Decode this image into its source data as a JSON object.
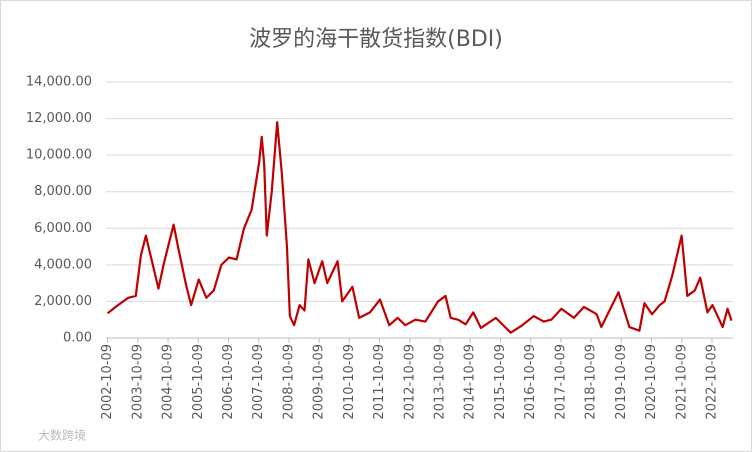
{
  "chart_data": {
    "type": "line",
    "title": "波罗的海干散货指数(BDI)",
    "x": [
      "2002-10-09",
      "2003-01-15",
      "2003-06-15",
      "2003-09-15",
      "2003-11-15",
      "2004-01-15",
      "2004-02-15",
      "2004-06-15",
      "2004-08-15",
      "2004-12-15",
      "2005-02-15",
      "2005-05-15",
      "2005-07-15",
      "2005-10-15",
      "2006-01-15",
      "2006-04-15",
      "2006-07-15",
      "2006-10-15",
      "2007-01-15",
      "2007-04-15",
      "2007-07-15",
      "2007-10-15",
      "2007-11-15",
      "2007-12-15",
      "2008-01-15",
      "2008-03-15",
      "2008-05-20",
      "2008-07-15",
      "2008-09-15",
      "2008-10-20",
      "2008-12-10",
      "2009-02-15",
      "2009-04-15",
      "2009-06-01",
      "2009-08-15",
      "2009-11-15",
      "2010-01-15",
      "2010-05-20",
      "2010-07-15",
      "2010-11-15",
      "2011-02-05",
      "2011-06-15",
      "2011-10-15",
      "2012-02-03",
      "2012-05-15",
      "2012-08-15",
      "2012-12-15",
      "2013-04-15",
      "2013-09-15",
      "2013-12-15",
      "2014-02-15",
      "2014-05-15",
      "2014-08-15",
      "2014-11-15",
      "2015-02-15",
      "2015-08-15",
      "2016-02-10",
      "2016-06-15",
      "2016-11-15",
      "2017-03-15",
      "2017-06-15",
      "2017-10-15",
      "2018-03-15",
      "2018-07-15",
      "2018-12-15",
      "2019-02-10",
      "2019-09-05",
      "2020-01-15",
      "2020-05-15",
      "2020-07-15",
      "2020-10-15",
      "2021-01-15",
      "2021-03-15",
      "2021-06-15",
      "2021-10-07",
      "2021-12-15",
      "2022-03-15",
      "2022-05-20",
      "2022-08-15",
      "2022-10-15",
      "2023-02-15",
      "2023-04-15",
      "2023-06-01"
    ],
    "series": [
      {
        "name": "BDI",
        "color": "#c00000",
        "values": [
          1350,
          1700,
          2200,
          2300,
          4500,
          5600,
          5000,
          2700,
          4000,
          6200,
          4800,
          2900,
          1800,
          3200,
          2200,
          2600,
          4000,
          4400,
          4300,
          6000,
          7000,
          9600,
          11000,
          9500,
          5600,
          8000,
          11800,
          9000,
          5000,
          1200,
          700,
          1800,
          1500,
          4300,
          3000,
          4200,
          3000,
          4200,
          2000,
          2800,
          1100,
          1400,
          2100,
          700,
          1100,
          700,
          1000,
          900,
          2000,
          2300,
          1100,
          1000,
          750,
          1400,
          550,
          1100,
          290,
          650,
          1200,
          900,
          1000,
          1600,
          1100,
          1700,
          1300,
          600,
          2500,
          600,
          400,
          1900,
          1300,
          1800,
          2000,
          3400,
          5600,
          2300,
          2600,
          3300,
          1400,
          1800,
          600,
          1600,
          950
        ]
      }
    ],
    "xlim": [
      "2002-09-20",
      "2023-06-20"
    ],
    "xticks": [
      "2002-10-09",
      "2003-10-09",
      "2004-10-09",
      "2005-10-09",
      "2006-10-09",
      "2007-10-09",
      "2008-10-09",
      "2009-10-09",
      "2010-10-09",
      "2011-10-09",
      "2012-10-09",
      "2013-10-09",
      "2014-10-09",
      "2015-10-09",
      "2016-10-09",
      "2017-10-09",
      "2018-10-09",
      "2019-10-09",
      "2020-10-09",
      "2021-10-09",
      "2022-10-09"
    ],
    "ylim": [
      0,
      14000
    ],
    "yticks": [
      {
        "value": 0,
        "label": "0.00"
      },
      {
        "value": 2000,
        "label": "2,000.00"
      },
      {
        "value": 4000,
        "label": "4,000.00"
      },
      {
        "value": 6000,
        "label": "6,000.00"
      },
      {
        "value": 8000,
        "label": "8,000.00"
      },
      {
        "value": 10000,
        "label": "10,000.00"
      },
      {
        "value": 12000,
        "label": "12,000.00"
      },
      {
        "value": 14000,
        "label": "14,000.00"
      }
    ],
    "grid": true,
    "watermark": "大数跨境"
  }
}
